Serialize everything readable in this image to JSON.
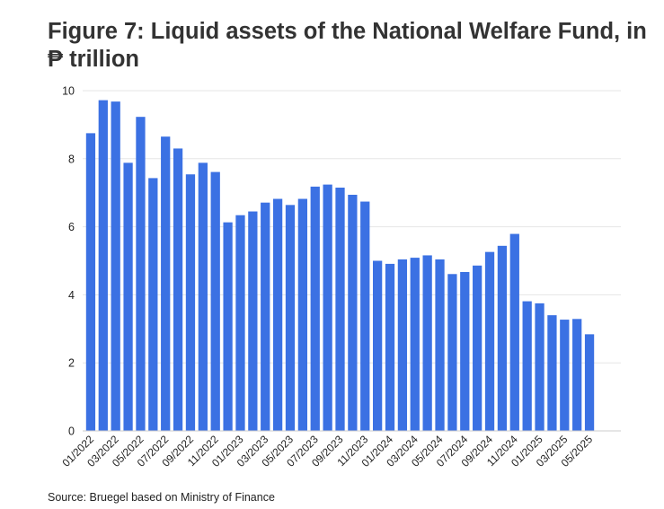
{
  "chart_data": {
    "type": "bar",
    "title": "Figure 7: Liquid assets of the National Welfare Fund, in ₱ trillion",
    "xlabel": "",
    "ylabel": "",
    "ylim": [
      0,
      10
    ],
    "yticks": [
      "0",
      "2",
      "4",
      "6",
      "8",
      "10"
    ],
    "grid": true,
    "color": "#3b71e3",
    "categories": [
      "01/2022",
      "02/2022",
      "03/2022",
      "04/2022",
      "05/2022",
      "06/2022",
      "07/2022",
      "08/2022",
      "09/2022",
      "10/2022",
      "11/2022",
      "12/2022",
      "01/2023",
      "02/2023",
      "03/2023",
      "04/2023",
      "05/2023",
      "06/2023",
      "07/2023",
      "08/2023",
      "09/2023",
      "10/2023",
      "11/2023",
      "12/2023",
      "01/2024",
      "02/2024",
      "03/2024",
      "04/2024",
      "05/2024",
      "06/2024",
      "07/2024",
      "08/2024",
      "09/2024",
      "10/2024",
      "11/2024",
      "12/2024",
      "01/2025",
      "02/2025",
      "03/2025",
      "04/2025",
      "05/2025"
    ],
    "tick_labels": [
      "01/2022",
      "",
      "03/2022",
      "",
      "05/2022",
      "",
      "07/2022",
      "",
      "09/2022",
      "",
      "11/2022",
      "",
      "01/2023",
      "",
      "03/2023",
      "",
      "05/2023",
      "",
      "07/2023",
      "",
      "09/2023",
      "",
      "11/2023",
      "",
      "01/2024",
      "",
      "03/2024",
      "",
      "05/2024",
      "",
      "07/2024",
      "",
      "09/2024",
      "",
      "11/2024",
      "",
      "01/2025",
      "",
      "03/2025",
      "",
      "05/2025"
    ],
    "values": [
      8.75,
      9.72,
      9.68,
      7.88,
      9.23,
      7.43,
      8.65,
      8.3,
      7.54,
      7.88,
      7.61,
      6.13,
      6.34,
      6.45,
      6.71,
      6.82,
      6.64,
      6.82,
      7.18,
      7.24,
      7.15,
      6.94,
      6.74,
      5.0,
      4.91,
      5.04,
      5.09,
      5.16,
      5.04,
      4.61,
      4.67,
      4.86,
      5.26,
      5.44,
      5.79,
      3.81,
      3.75,
      3.4,
      3.27,
      3.29,
      2.84
    ]
  },
  "source": "Source: Bruegel based on Ministry of Finance"
}
